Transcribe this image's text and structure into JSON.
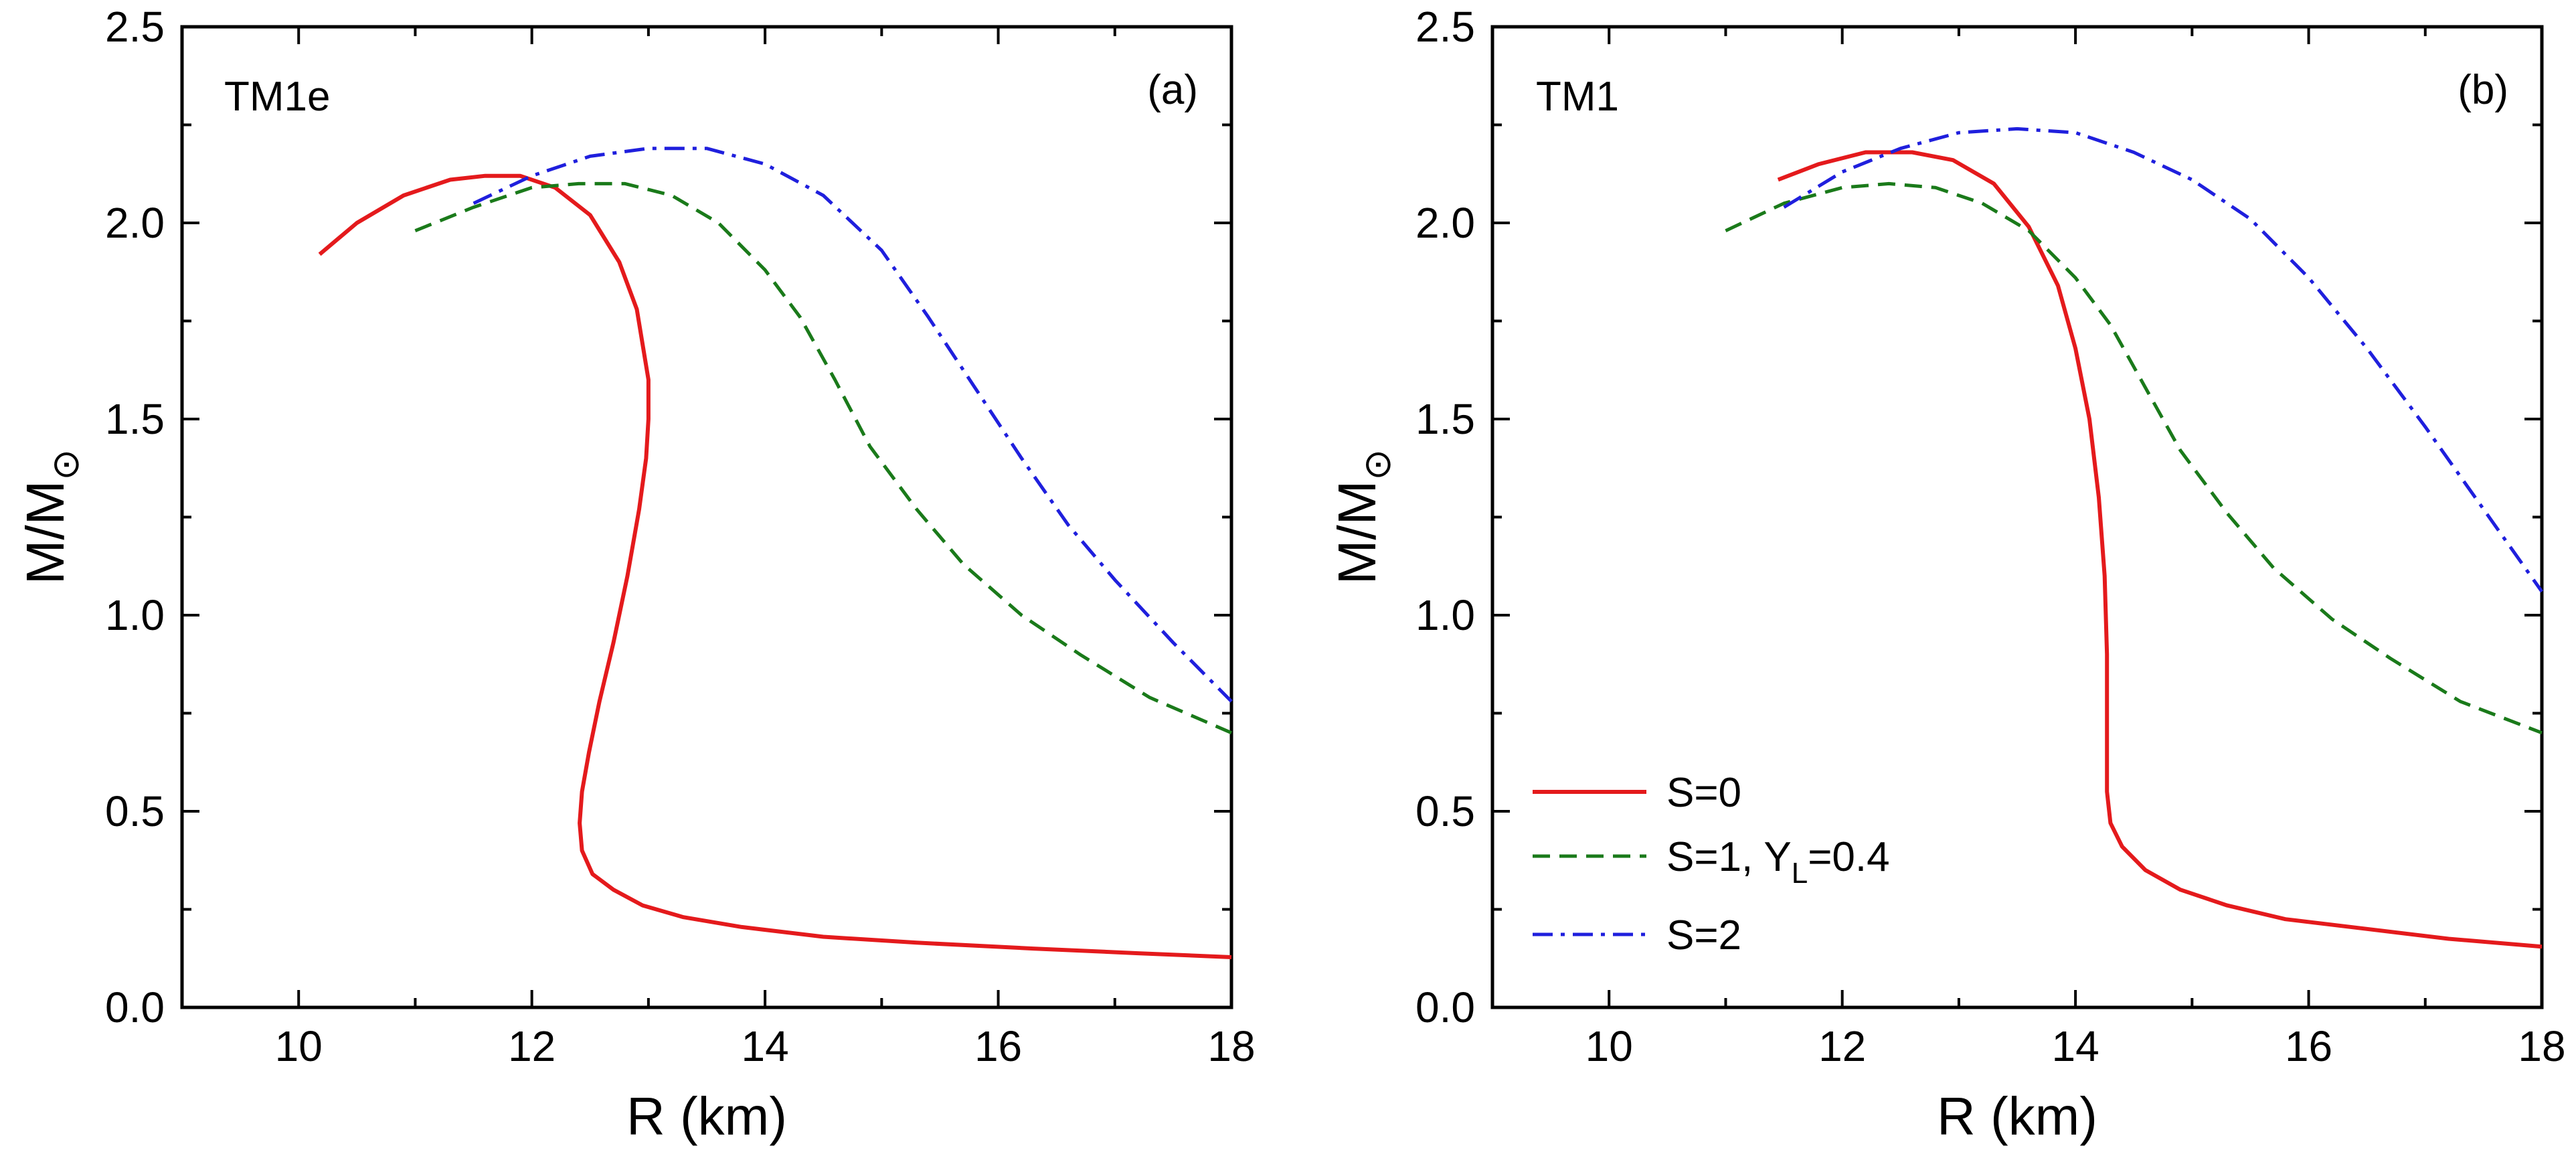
{
  "chart_data": [
    {
      "type": "line",
      "panel_tag": "TM1e",
      "panel_letter": "(a)",
      "xlabel": "R (km)",
      "ylabel": "M/M",
      "ylabel_sub": "⊙",
      "xlim": [
        9,
        18
      ],
      "ylim": [
        0,
        2.5
      ],
      "xticks": [
        10,
        12,
        14,
        16,
        18
      ],
      "yticks": [
        0.0,
        0.5,
        1.0,
        1.5,
        2.0,
        2.5
      ],
      "ytick_labels": [
        "0.0",
        "0.5",
        "1.0",
        "1.5",
        "2.0",
        "2.5"
      ],
      "grid": false,
      "series": [
        {
          "key": "s0",
          "color": "#e41a1c",
          "dash": "solid",
          "points": [
            [
              10.18,
              1.92
            ],
            [
              10.5,
              2.0
            ],
            [
              10.9,
              2.07
            ],
            [
              11.3,
              2.11
            ],
            [
              11.6,
              2.12
            ],
            [
              11.9,
              2.12
            ],
            [
              12.2,
              2.09
            ],
            [
              12.5,
              2.02
            ],
            [
              12.75,
              1.9
            ],
            [
              12.9,
              1.78
            ],
            [
              13.0,
              1.6
            ],
            [
              13.0,
              1.5
            ],
            [
              12.98,
              1.4
            ],
            [
              12.92,
              1.27
            ],
            [
              12.82,
              1.1
            ],
            [
              12.7,
              0.93
            ],
            [
              12.58,
              0.78
            ],
            [
              12.49,
              0.65
            ],
            [
              12.43,
              0.55
            ],
            [
              12.41,
              0.47
            ],
            [
              12.43,
              0.4
            ],
            [
              12.52,
              0.34
            ],
            [
              12.7,
              0.3
            ],
            [
              12.95,
              0.26
            ],
            [
              13.3,
              0.23
            ],
            [
              13.8,
              0.205
            ],
            [
              14.5,
              0.18
            ],
            [
              15.3,
              0.165
            ],
            [
              16.3,
              0.15
            ],
            [
              17.2,
              0.138
            ],
            [
              18.0,
              0.128
            ]
          ]
        },
        {
          "key": "s1",
          "color": "#1a7a1a",
          "dash": "dash",
          "points": [
            [
              11.0,
              1.98
            ],
            [
              11.5,
              2.04
            ],
            [
              12.0,
              2.09
            ],
            [
              12.4,
              2.1
            ],
            [
              12.8,
              2.1
            ],
            [
              13.2,
              2.07
            ],
            [
              13.6,
              2.0
            ],
            [
              14.0,
              1.88
            ],
            [
              14.3,
              1.76
            ],
            [
              14.6,
              1.6
            ],
            [
              14.9,
              1.43
            ],
            [
              15.3,
              1.27
            ],
            [
              15.7,
              1.13
            ],
            [
              16.2,
              1.0
            ],
            [
              16.7,
              0.9
            ],
            [
              17.3,
              0.79
            ],
            [
              18.0,
              0.7
            ]
          ]
        },
        {
          "key": "s2",
          "color": "#1f1fdd",
          "dash": "dashdot",
          "points": [
            [
              11.5,
              2.05
            ],
            [
              12.0,
              2.12
            ],
            [
              12.5,
              2.17
            ],
            [
              13.0,
              2.19
            ],
            [
              13.5,
              2.19
            ],
            [
              14.0,
              2.15
            ],
            [
              14.5,
              2.07
            ],
            [
              15.0,
              1.93
            ],
            [
              15.4,
              1.76
            ],
            [
              15.8,
              1.58
            ],
            [
              16.2,
              1.4
            ],
            [
              16.6,
              1.23
            ],
            [
              17.0,
              1.09
            ],
            [
              17.5,
              0.93
            ],
            [
              18.0,
              0.78
            ]
          ]
        }
      ]
    },
    {
      "type": "line",
      "panel_tag": "TM1",
      "panel_letter": "(b)",
      "xlabel": "R (km)",
      "ylabel": "M/M",
      "ylabel_sub": "⊙",
      "xlim": [
        9,
        18
      ],
      "ylim": [
        0,
        2.5
      ],
      "xticks": [
        10,
        12,
        14,
        16,
        18
      ],
      "yticks": [
        0.0,
        0.5,
        1.0,
        1.5,
        2.0,
        2.5
      ],
      "ytick_labels": [
        "0.0",
        "0.5",
        "1.0",
        "1.5",
        "2.0",
        "2.5"
      ],
      "grid": false,
      "legend_position": "bottom-left",
      "legend": [
        {
          "key": "s0",
          "label": "S=0"
        },
        {
          "key": "s1",
          "label": "S=1, Y",
          "sub": "L",
          "suffix": "=0.4"
        },
        {
          "key": "s2",
          "label": "S=2"
        }
      ],
      "series": [
        {
          "key": "s0",
          "color": "#e41a1c",
          "dash": "solid",
          "points": [
            [
              11.45,
              2.11
            ],
            [
              11.8,
              2.15
            ],
            [
              12.2,
              2.18
            ],
            [
              12.6,
              2.18
            ],
            [
              12.95,
              2.16
            ],
            [
              13.3,
              2.1
            ],
            [
              13.6,
              1.99
            ],
            [
              13.85,
              1.84
            ],
            [
              14.0,
              1.68
            ],
            [
              14.12,
              1.5
            ],
            [
              14.2,
              1.3
            ],
            [
              14.25,
              1.1
            ],
            [
              14.27,
              0.9
            ],
            [
              14.27,
              0.7
            ],
            [
              14.27,
              0.55
            ],
            [
              14.3,
              0.47
            ],
            [
              14.4,
              0.41
            ],
            [
              14.6,
              0.35
            ],
            [
              14.9,
              0.3
            ],
            [
              15.3,
              0.26
            ],
            [
              15.8,
              0.225
            ],
            [
              16.5,
              0.2
            ],
            [
              17.2,
              0.175
            ],
            [
              18.0,
              0.155
            ]
          ]
        },
        {
          "key": "s1",
          "color": "#1a7a1a",
          "dash": "dash",
          "points": [
            [
              11.0,
              1.98
            ],
            [
              11.5,
              2.05
            ],
            [
              12.0,
              2.09
            ],
            [
              12.4,
              2.1
            ],
            [
              12.8,
              2.09
            ],
            [
              13.2,
              2.05
            ],
            [
              13.6,
              1.98
            ],
            [
              14.0,
              1.86
            ],
            [
              14.3,
              1.74
            ],
            [
              14.6,
              1.58
            ],
            [
              14.9,
              1.42
            ],
            [
              15.3,
              1.26
            ],
            [
              15.7,
              1.12
            ],
            [
              16.2,
              0.99
            ],
            [
              16.7,
              0.89
            ],
            [
              17.3,
              0.78
            ],
            [
              18.0,
              0.7
            ]
          ]
        },
        {
          "key": "s2",
          "color": "#1f1fdd",
          "dash": "dashdot",
          "points": [
            [
              11.5,
              2.04
            ],
            [
              12.0,
              2.13
            ],
            [
              12.5,
              2.19
            ],
            [
              13.0,
              2.23
            ],
            [
              13.5,
              2.24
            ],
            [
              14.0,
              2.23
            ],
            [
              14.5,
              2.18
            ],
            [
              15.0,
              2.11
            ],
            [
              15.5,
              2.01
            ],
            [
              16.0,
              1.86
            ],
            [
              16.5,
              1.68
            ],
            [
              17.0,
              1.48
            ],
            [
              17.5,
              1.27
            ],
            [
              18.0,
              1.06
            ]
          ]
        }
      ]
    }
  ]
}
